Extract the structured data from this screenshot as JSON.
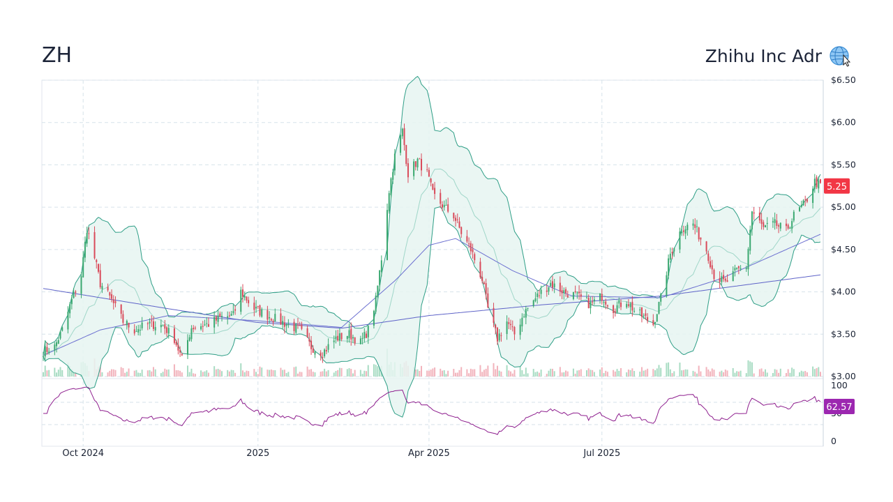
{
  "header": {
    "ticker": "ZH",
    "company": "Zhihu Inc Adr"
  },
  "icons": {
    "globe": "globe-icon",
    "cursor": "cursor-icon"
  },
  "colors": {
    "up": "#3aa870",
    "down": "#d94a5a",
    "band_line": "#2e9e86",
    "band_fill": "#e6f4f1",
    "ma_short": "#6b6fd0",
    "ma_long": "#5e63c8",
    "rsi": "#8e1e8e",
    "price_badge": "#f23645",
    "rsi_badge": "#9c27b0"
  },
  "chart_data": {
    "type": "candlestick",
    "title": "ZH",
    "subtitle": "Zhihu Inc Adr",
    "price_axis": {
      "ticks": [
        "$6.50",
        "$6.00",
        "$5.50",
        "$5.00",
        "$4.50",
        "$4.00",
        "$3.50",
        "$3.00"
      ],
      "range": [
        3.0,
        6.5
      ]
    },
    "rsi_axis": {
      "ticks": [
        "100",
        "50",
        "0"
      ],
      "range": [
        0,
        100
      ],
      "guides": [
        30,
        70
      ]
    },
    "x_ticks": [
      "Oct 2024",
      "2025",
      "Apr 2025",
      "Jul 2025"
    ],
    "last_price": "5.25",
    "last_rsi": "62.57",
    "close_anchors": [
      [
        "2024-09-10",
        3.3
      ],
      [
        "2024-09-16",
        3.35
      ],
      [
        "2024-09-20",
        3.55
      ],
      [
        "2024-09-25",
        3.9
      ],
      [
        "2024-09-30",
        4.2
      ],
      [
        "2024-10-03",
        4.75
      ],
      [
        "2024-10-07",
        4.4
      ],
      [
        "2024-10-10",
        4.1
      ],
      [
        "2024-10-16",
        3.9
      ],
      [
        "2024-10-22",
        3.65
      ],
      [
        "2024-10-28",
        3.55
      ],
      [
        "2024-11-05",
        3.62
      ],
      [
        "2024-11-12",
        3.6
      ],
      [
        "2024-11-18",
        3.45
      ],
      [
        "2024-11-22",
        3.2
      ],
      [
        "2024-11-27",
        3.58
      ],
      [
        "2024-12-06",
        3.62
      ],
      [
        "2024-12-13",
        3.7
      ],
      [
        "2024-12-19",
        3.72
      ],
      [
        "2024-12-23",
        4.0
      ],
      [
        "2024-12-30",
        3.8
      ],
      [
        "2025-01-08",
        3.7
      ],
      [
        "2025-01-16",
        3.62
      ],
      [
        "2025-01-23",
        3.55
      ],
      [
        "2025-01-29",
        3.35
      ],
      [
        "2025-02-04",
        3.28
      ],
      [
        "2025-02-11",
        3.45
      ],
      [
        "2025-02-18",
        3.5
      ],
      [
        "2025-02-24",
        3.4
      ],
      [
        "2025-02-28",
        3.55
      ],
      [
        "2025-03-04",
        3.9
      ],
      [
        "2025-03-07",
        4.4
      ],
      [
        "2025-03-11",
        5.2
      ],
      [
        "2025-03-14",
        5.6
      ],
      [
        "2025-03-18",
        5.9
      ],
      [
        "2025-03-21",
        5.4
      ],
      [
        "2025-03-26",
        5.55
      ],
      [
        "2025-03-31",
        5.4
      ],
      [
        "2025-04-03",
        5.15
      ],
      [
        "2025-04-09",
        5.0
      ],
      [
        "2025-04-14",
        4.9
      ],
      [
        "2025-04-18",
        4.7
      ],
      [
        "2025-04-23",
        4.5
      ],
      [
        "2025-04-29",
        4.15
      ],
      [
        "2025-05-02",
        3.8
      ],
      [
        "2025-05-07",
        3.45
      ],
      [
        "2025-05-12",
        3.65
      ],
      [
        "2025-05-16",
        3.5
      ],
      [
        "2025-05-21",
        3.75
      ],
      [
        "2025-05-28",
        3.95
      ],
      [
        "2025-06-04",
        4.1
      ],
      [
        "2025-06-11",
        4.0
      ],
      [
        "2025-06-18",
        3.95
      ],
      [
        "2025-06-25",
        3.85
      ],
      [
        "2025-07-01",
        3.95
      ],
      [
        "2025-07-07",
        3.8
      ],
      [
        "2025-07-14",
        3.9
      ],
      [
        "2025-07-18",
        3.78
      ],
      [
        "2025-07-23",
        3.7
      ],
      [
        "2025-07-28",
        3.62
      ],
      [
        "2025-08-01",
        3.92
      ],
      [
        "2025-08-06",
        4.45
      ],
      [
        "2025-08-12",
        4.75
      ],
      [
        "2025-08-18",
        4.8
      ],
      [
        "2025-08-25",
        4.5
      ],
      [
        "2025-08-29",
        4.2
      ],
      [
        "2025-09-04",
        4.1
      ],
      [
        "2025-09-10",
        4.25
      ],
      [
        "2025-09-15",
        4.3
      ],
      [
        "2025-09-18",
        4.95
      ],
      [
        "2025-09-24",
        4.75
      ],
      [
        "2025-09-30",
        4.8
      ],
      [
        "2025-10-06",
        4.72
      ],
      [
        "2025-10-10",
        4.9
      ],
      [
        "2025-10-16",
        5.05
      ],
      [
        "2025-10-21",
        5.3
      ],
      [
        "2025-10-24",
        5.25
      ]
    ],
    "ma_long_anchors": [
      [
        "2024-09-10",
        4.04
      ],
      [
        "2024-11-15",
        3.8
      ],
      [
        "2024-12-31",
        3.64
      ],
      [
        "2025-02-14",
        3.57
      ],
      [
        "2025-04-01",
        3.72
      ],
      [
        "2025-06-01",
        3.85
      ],
      [
        "2025-08-01",
        3.95
      ],
      [
        "2025-10-24",
        4.2
      ]
    ],
    "ma_mid_anchors": [
      [
        "2024-09-10",
        3.25
      ],
      [
        "2024-10-10",
        3.55
      ],
      [
        "2024-11-15",
        3.72
      ],
      [
        "2024-12-31",
        3.66
      ],
      [
        "2025-02-14",
        3.58
      ],
      [
        "2025-03-15",
        4.15
      ],
      [
        "2025-04-01",
        4.55
      ],
      [
        "2025-04-15",
        4.63
      ],
      [
        "2025-05-15",
        4.25
      ],
      [
        "2025-06-15",
        3.95
      ],
      [
        "2025-08-01",
        3.93
      ],
      [
        "2025-09-01",
        4.15
      ],
      [
        "2025-10-24",
        4.68
      ]
    ]
  }
}
